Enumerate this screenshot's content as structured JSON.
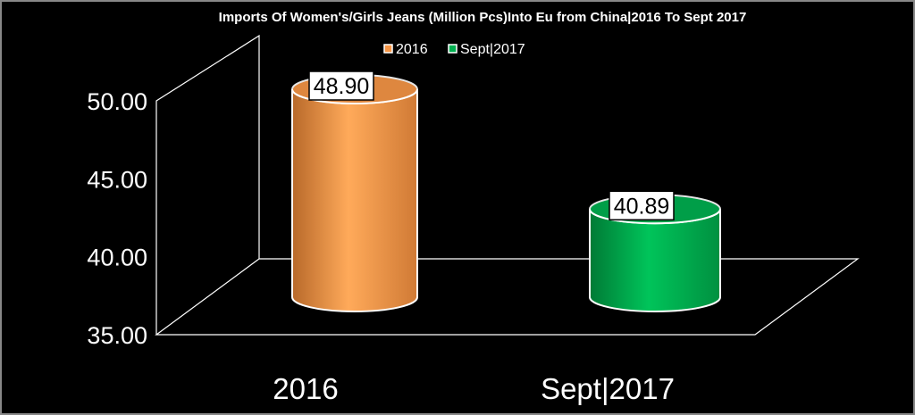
{
  "chart_data": {
    "type": "bar",
    "style": "3d-cylinder",
    "title": "Imports Of Women's/Girls Jeans (Million Pcs)Into Eu from China|2016 To Sept 2017",
    "categories": [
      "2016",
      "Sept|2017"
    ],
    "values": [
      48.9,
      40.89
    ],
    "data_labels": [
      "48.90",
      "40.89"
    ],
    "colors": [
      "#f79646",
      "#00b050"
    ],
    "legend": {
      "position": "top",
      "entries": [
        "2016",
        "Sept|2017"
      ]
    },
    "ylim": [
      35,
      50
    ],
    "yticks": [
      "35.00",
      "40.00",
      "45.00",
      "50.00"
    ],
    "xlabel": "",
    "ylabel": "",
    "grid": false,
    "background": "#000000"
  }
}
